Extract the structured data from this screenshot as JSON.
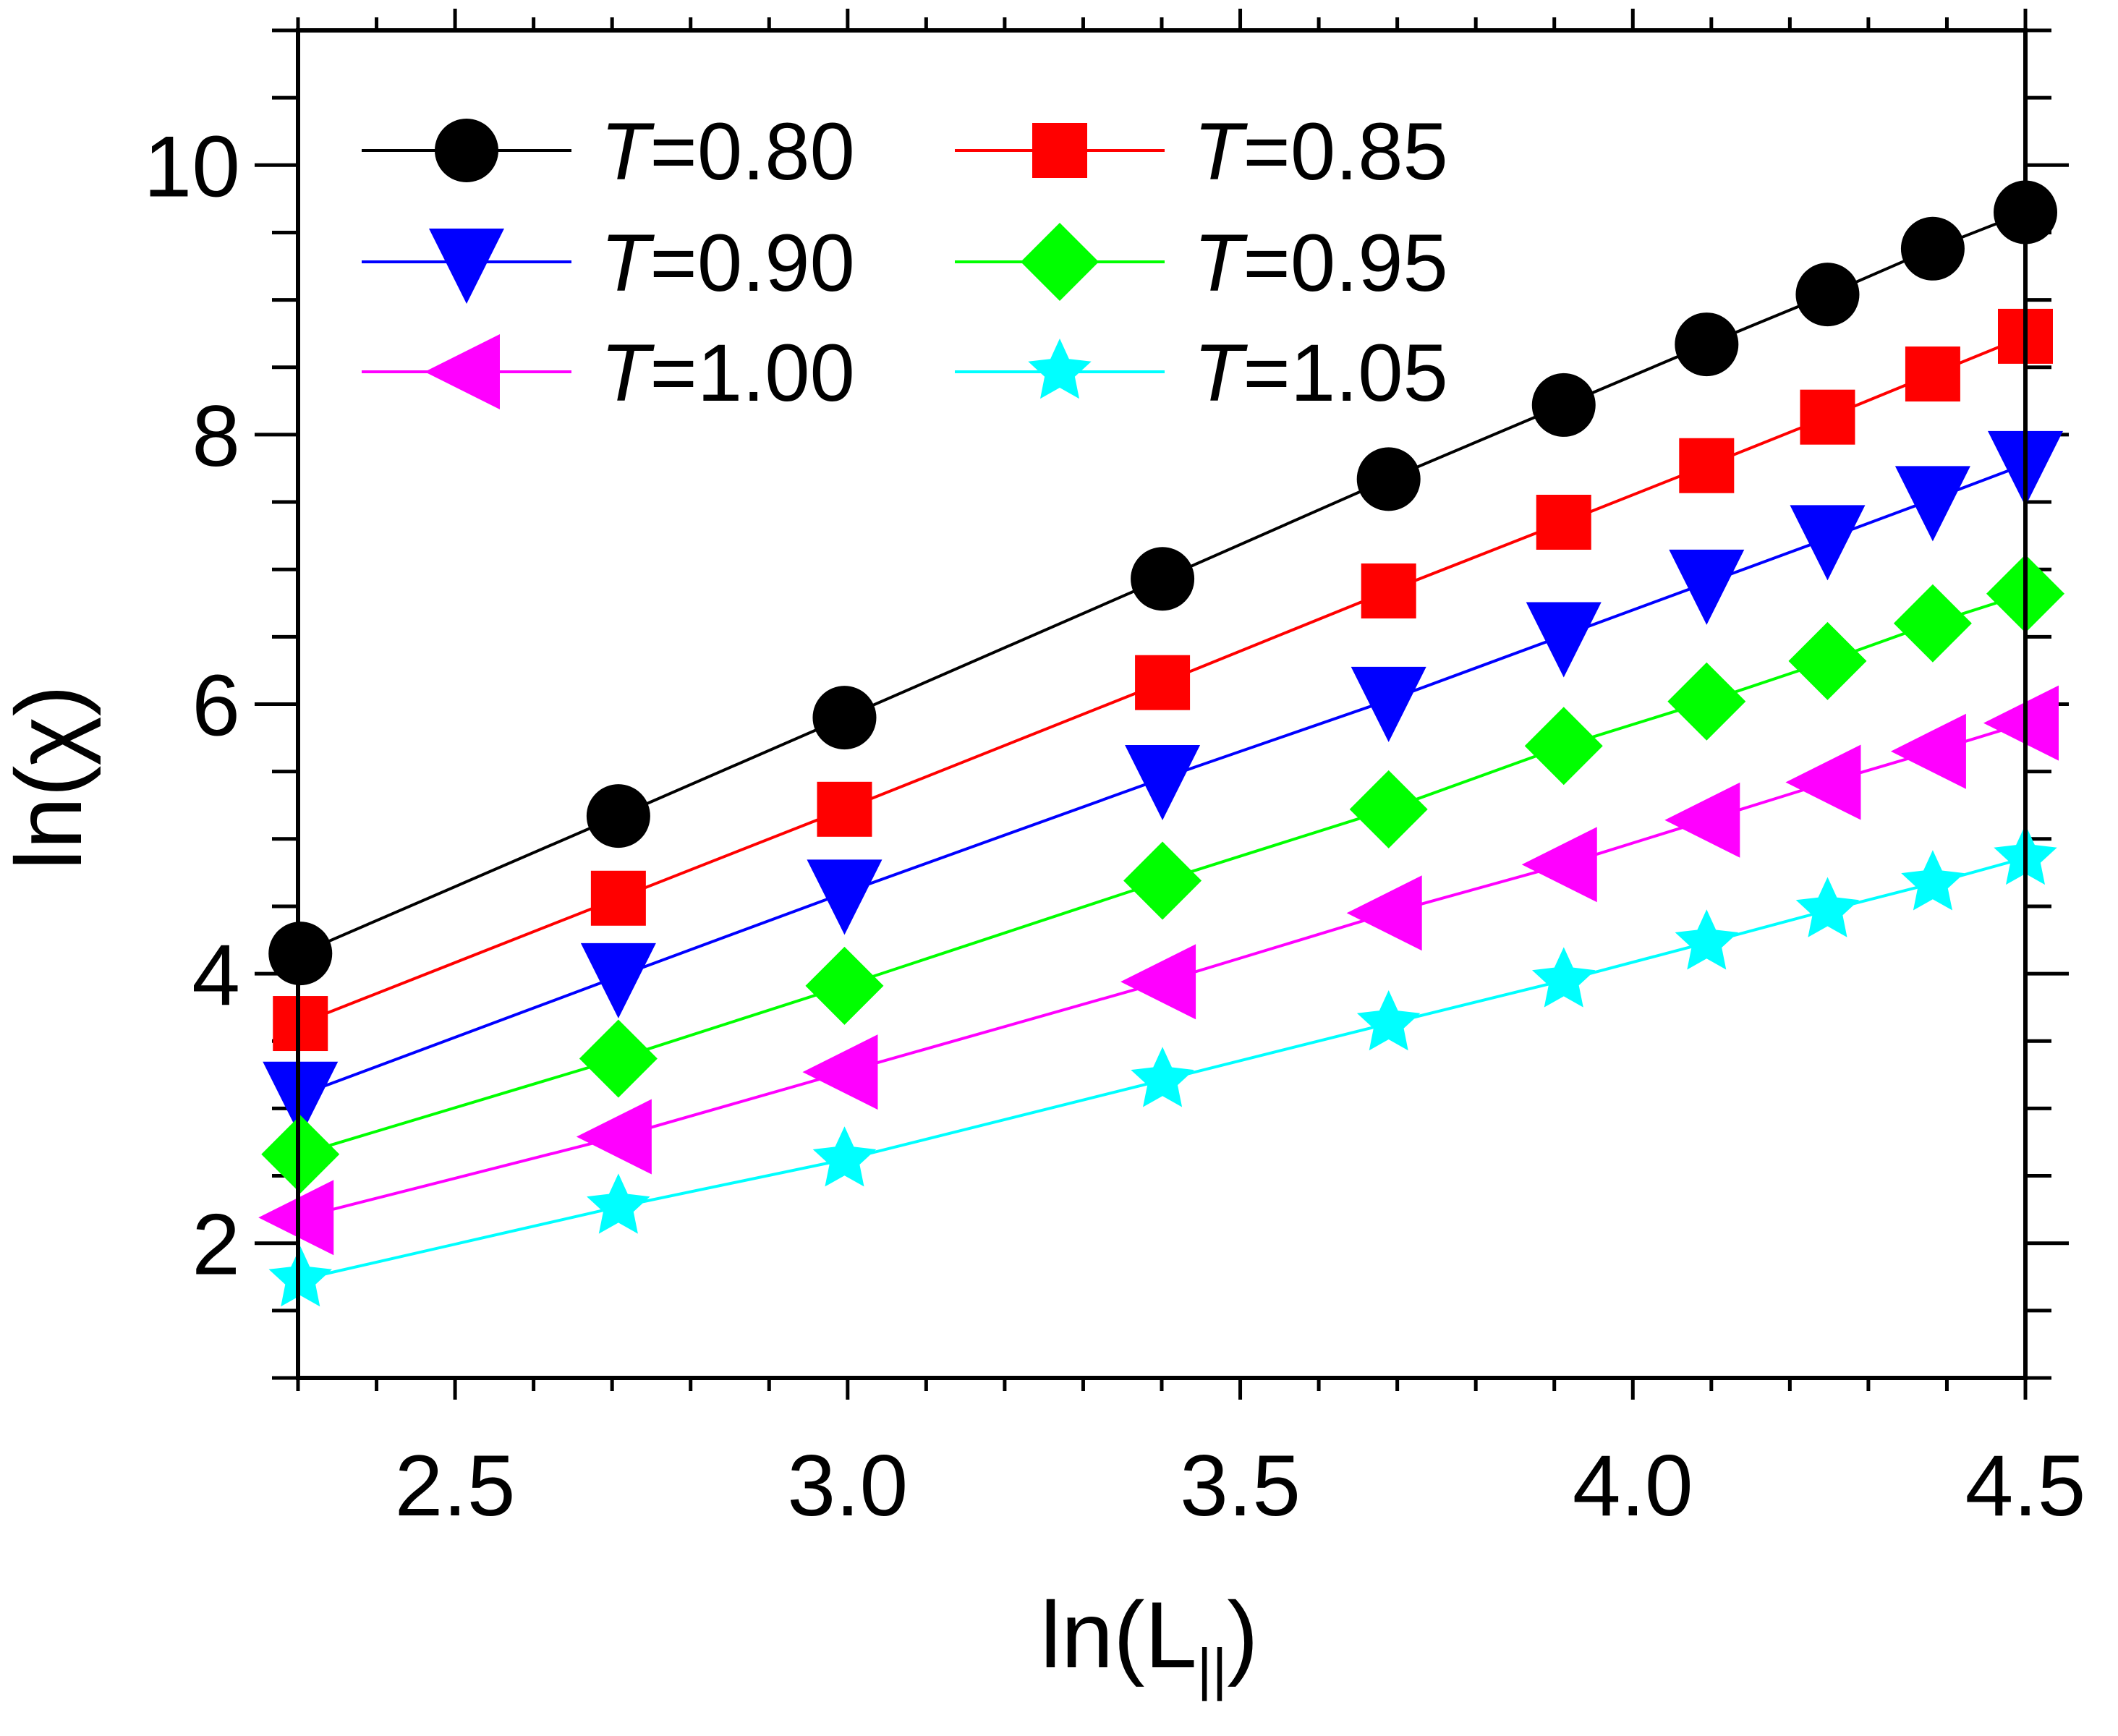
{
  "chart_data": {
    "type": "line",
    "title": "",
    "xlabel": "ln(L",
    "xlabel_subscript": "||",
    "xlabel_close": ")",
    "ylabel": "ln(χ)",
    "xlim": [
      2.3,
      4.5
    ],
    "ylim": [
      1.0,
      11.0
    ],
    "xticks": [
      2.5,
      3.0,
      3.5,
      4.0,
      4.5
    ],
    "xtick_labels": [
      "2.5",
      "3.0",
      "3.5",
      "4.0",
      "4.5"
    ],
    "yticks": [
      2,
      4,
      6,
      8,
      10
    ],
    "ytick_labels": [
      "2",
      "4",
      "6",
      "8",
      "10"
    ],
    "legend_position": "top-left",
    "x": [
      2.303,
      2.708,
      2.996,
      3.401,
      3.689,
      3.912,
      4.094,
      4.248,
      4.382,
      4.5
    ],
    "series": [
      {
        "name": "T=0.80",
        "prefix": "T",
        "value_label": "=0.80",
        "color": "#000000",
        "marker": "circle",
        "values": [
          4.15,
          5.17,
          5.9,
          6.93,
          7.67,
          8.22,
          8.67,
          9.04,
          9.38,
          9.65
        ]
      },
      {
        "name": "T=0.85",
        "prefix": "T",
        "value_label": "=0.85",
        "color": "#ff0000",
        "marker": "square",
        "values": [
          3.63,
          4.56,
          5.22,
          6.16,
          6.84,
          7.35,
          7.77,
          8.13,
          8.45,
          8.73
        ]
      },
      {
        "name": "T=0.90",
        "prefix": "T",
        "value_label": "=0.90",
        "color": "#0000ff",
        "marker": "triangle-down",
        "values": [
          3.1,
          3.98,
          4.6,
          5.45,
          6.03,
          6.51,
          6.9,
          7.23,
          7.52,
          7.78
        ]
      },
      {
        "name": "T=0.95",
        "prefix": "T",
        "value_label": "=0.95",
        "color": "#00ff00",
        "marker": "diamond",
        "values": [
          2.66,
          3.37,
          3.91,
          4.69,
          5.22,
          5.69,
          6.02,
          6.32,
          6.6,
          6.82
        ]
      },
      {
        "name": "T=1.00",
        "prefix": "T",
        "value_label": "=1.00",
        "color": "#ff00ff",
        "marker": "triangle-left",
        "values": [
          2.19,
          2.79,
          3.27,
          3.94,
          4.45,
          4.81,
          5.14,
          5.42,
          5.65,
          5.86
        ]
      },
      {
        "name": "T=1.05",
        "prefix": "T",
        "value_label": "=1.05",
        "color": "#00ffff",
        "marker": "star",
        "values": [
          1.73,
          2.27,
          2.62,
          3.21,
          3.63,
          3.95,
          4.23,
          4.47,
          4.67,
          4.86
        ]
      }
    ]
  }
}
